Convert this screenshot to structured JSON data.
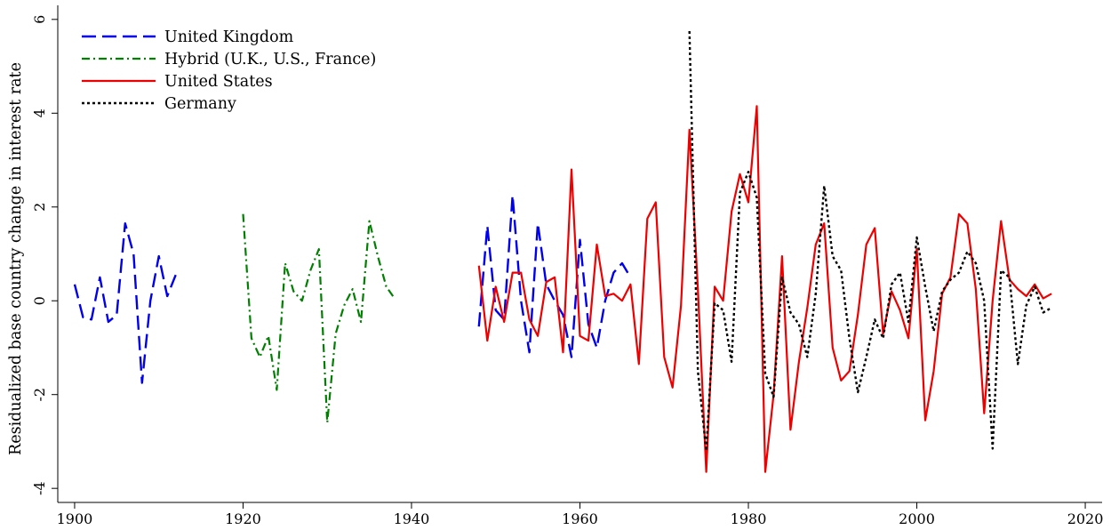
{
  "chart_data": {
    "type": "line",
    "title": "",
    "xlabel": "",
    "ylabel": "Residualized base country change in interest rate",
    "xlim": [
      1898,
      2022
    ],
    "ylim": [
      -4.3,
      6.3
    ],
    "xticks": [
      1900,
      1920,
      1940,
      1960,
      1980,
      2000,
      2020
    ],
    "yticks": [
      -4,
      -2,
      0,
      2,
      4,
      6
    ],
    "grid": false,
    "legend_position": "top-left",
    "series": [
      {
        "name": "United Kingdom",
        "color": "#0000ee",
        "dash": "long-dash",
        "segments": [
          [
            [
              1900,
              0.35
            ],
            [
              1901,
              -0.35
            ],
            [
              1902,
              -0.4
            ],
            [
              1903,
              0.5
            ],
            [
              1904,
              -0.45
            ],
            [
              1905,
              -0.3
            ],
            [
              1906,
              1.65
            ],
            [
              1907,
              1.0
            ],
            [
              1908,
              -1.75
            ],
            [
              1909,
              0.0
            ],
            [
              1910,
              0.95
            ],
            [
              1911,
              0.1
            ],
            [
              1912,
              0.55
            ]
          ],
          [
            [
              1948,
              -0.55
            ],
            [
              1949,
              1.6
            ],
            [
              1950,
              -0.2
            ],
            [
              1951,
              -0.4
            ],
            [
              1952,
              2.25
            ],
            [
              1953,
              0.0
            ],
            [
              1954,
              -1.1
            ],
            [
              1955,
              1.65
            ],
            [
              1956,
              0.35
            ],
            [
              1957,
              0.0
            ],
            [
              1958,
              -0.3
            ],
            [
              1959,
              -1.2
            ],
            [
              1960,
              1.3
            ],
            [
              1961,
              -0.5
            ],
            [
              1962,
              -1.0
            ],
            [
              1963,
              0.0
            ],
            [
              1964,
              0.6
            ],
            [
              1965,
              0.8
            ],
            [
              1966,
              0.5
            ]
          ]
        ]
      },
      {
        "name": "Hybrid (U.K., U.S., France)",
        "color": "#008000",
        "dash": "dash-dot",
        "segments": [
          [
            [
              1920,
              1.85
            ],
            [
              1921,
              -0.8
            ],
            [
              1922,
              -1.2
            ],
            [
              1923,
              -0.75
            ],
            [
              1924,
              -1.9
            ],
            [
              1925,
              0.8
            ],
            [
              1926,
              0.2
            ],
            [
              1927,
              0.0
            ],
            [
              1928,
              0.65
            ],
            [
              1929,
              1.1
            ],
            [
              1930,
              -2.6
            ],
            [
              1931,
              -0.7
            ],
            [
              1932,
              -0.1
            ],
            [
              1933,
              0.25
            ],
            [
              1934,
              -0.45
            ],
            [
              1935,
              1.7
            ],
            [
              1936,
              0.95
            ],
            [
              1937,
              0.3
            ],
            [
              1938,
              0.05
            ]
          ]
        ]
      },
      {
        "name": "United States",
        "color": "#ee0000",
        "dash": "solid",
        "segments": [
          [
            [
              1948,
              0.75
            ],
            [
              1949,
              -0.85
            ],
            [
              1950,
              0.3
            ],
            [
              1951,
              -0.45
            ],
            [
              1952,
              0.6
            ],
            [
              1953,
              0.6
            ],
            [
              1954,
              -0.4
            ],
            [
              1955,
              -0.75
            ],
            [
              1956,
              0.4
            ],
            [
              1957,
              0.5
            ],
            [
              1958,
              -1.1
            ],
            [
              1959,
              2.8
            ],
            [
              1960,
              -0.75
            ],
            [
              1961,
              -0.85
            ],
            [
              1962,
              1.2
            ],
            [
              1963,
              0.1
            ],
            [
              1964,
              0.15
            ],
            [
              1965,
              0.0
            ],
            [
              1966,
              0.35
            ],
            [
              1967,
              -1.35
            ],
            [
              1968,
              1.75
            ],
            [
              1969,
              2.1
            ],
            [
              1970,
              -1.2
            ],
            [
              1971,
              -1.85
            ],
            [
              1972,
              -0.1
            ],
            [
              1973,
              3.65
            ],
            [
              1974,
              0.25
            ],
            [
              1975,
              -3.65
            ],
            [
              1976,
              0.3
            ],
            [
              1977,
              0.0
            ],
            [
              1978,
              1.9
            ],
            [
              1979,
              2.7
            ],
            [
              1980,
              2.1
            ],
            [
              1981,
              4.15
            ],
            [
              1982,
              -3.65
            ],
            [
              1983,
              -2.0
            ],
            [
              1984,
              0.95
            ],
            [
              1985,
              -2.75
            ],
            [
              1986,
              -1.3
            ],
            [
              1987,
              -0.15
            ],
            [
              1988,
              1.2
            ],
            [
              1989,
              1.65
            ],
            [
              1990,
              -1.0
            ],
            [
              1991,
              -1.7
            ],
            [
              1992,
              -1.5
            ],
            [
              1993,
              -0.3
            ],
            [
              1994,
              1.2
            ],
            [
              1995,
              1.55
            ],
            [
              1996,
              -0.7
            ],
            [
              1997,
              0.2
            ],
            [
              1998,
              -0.2
            ],
            [
              1999,
              -0.8
            ],
            [
              2000,
              1.1
            ],
            [
              2001,
              -2.55
            ],
            [
              2002,
              -1.5
            ],
            [
              2003,
              0.15
            ],
            [
              2004,
              0.5
            ],
            [
              2005,
              1.85
            ],
            [
              2006,
              1.65
            ],
            [
              2007,
              0.25
            ],
            [
              2008,
              -2.4
            ],
            [
              2009,
              0.0
            ],
            [
              2010,
              1.7
            ],
            [
              2011,
              0.45
            ],
            [
              2012,
              0.25
            ],
            [
              2013,
              0.1
            ],
            [
              2014,
              0.35
            ],
            [
              2015,
              0.05
            ],
            [
              2016,
              0.15
            ]
          ]
        ]
      },
      {
        "name": "Germany",
        "color": "#000000",
        "dash": "dotted",
        "segments": [
          [
            [
              1973,
              5.75
            ],
            [
              1974,
              -1.5
            ],
            [
              1975,
              -3.2
            ],
            [
              1976,
              -0.05
            ],
            [
              1977,
              -0.2
            ],
            [
              1978,
              -1.3
            ],
            [
              1979,
              2.3
            ],
            [
              1980,
              2.75
            ],
            [
              1981,
              2.2
            ],
            [
              1982,
              -1.55
            ],
            [
              1983,
              -2.05
            ],
            [
              1984,
              0.5
            ],
            [
              1985,
              -0.25
            ],
            [
              1986,
              -0.5
            ],
            [
              1987,
              -1.2
            ],
            [
              1988,
              0.15
            ],
            [
              1989,
              2.45
            ],
            [
              1990,
              0.95
            ],
            [
              1991,
              0.65
            ],
            [
              1992,
              -0.8
            ],
            [
              1993,
              -1.95
            ],
            [
              1994,
              -1.2
            ],
            [
              1995,
              -0.4
            ],
            [
              1996,
              -0.8
            ],
            [
              1997,
              0.35
            ],
            [
              1998,
              0.6
            ],
            [
              1999,
              -0.45
            ],
            [
              2000,
              1.35
            ],
            [
              2001,
              0.3
            ],
            [
              2002,
              -0.65
            ],
            [
              2003,
              0.2
            ],
            [
              2004,
              0.45
            ],
            [
              2005,
              0.6
            ],
            [
              2006,
              1.05
            ],
            [
              2007,
              0.8
            ],
            [
              2008,
              0.0
            ],
            [
              2009,
              -3.15
            ],
            [
              2010,
              0.65
            ],
            [
              2011,
              0.5
            ],
            [
              2012,
              -1.35
            ],
            [
              2013,
              -0.1
            ],
            [
              2014,
              0.3
            ],
            [
              2015,
              -0.25
            ],
            [
              2016,
              -0.15
            ]
          ]
        ]
      }
    ]
  }
}
